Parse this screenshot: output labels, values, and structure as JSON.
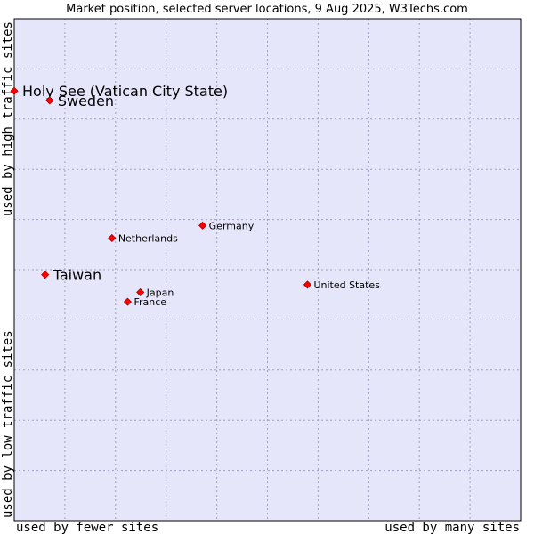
{
  "chart_data": {
    "type": "scatter",
    "title": "Market position, selected server locations, 9 Aug 2025, W3Techs.com",
    "xlabel_left": "used by fewer sites",
    "xlabel_right": "used by many sites",
    "ylabel_bottom": "used by low traffic sites",
    "ylabel_top": "used by high traffic sites",
    "grid": true,
    "colors": {
      "plot_bg": "#e6e6fa",
      "grid": "#a0a0c0",
      "marker": "#ff0000",
      "marker_edge": "#aa0000"
    },
    "points": [
      {
        "label": "Holy See (Vatican City State)",
        "x": 0.0,
        "y": 0.856,
        "size": "large"
      },
      {
        "label": "Sweden",
        "x": 0.07,
        "y": 0.837,
        "size": "large"
      },
      {
        "label": "Germany",
        "x": 0.372,
        "y": 0.588,
        "size": "small"
      },
      {
        "label": "Netherlands",
        "x": 0.193,
        "y": 0.563,
        "size": "small"
      },
      {
        "label": "Taiwan",
        "x": 0.061,
        "y": 0.49,
        "size": "large"
      },
      {
        "label": "United States",
        "x": 0.579,
        "y": 0.47,
        "size": "small"
      },
      {
        "label": "Japan",
        "x": 0.249,
        "y": 0.455,
        "size": "small"
      },
      {
        "label": "France",
        "x": 0.224,
        "y": 0.436,
        "size": "small"
      }
    ]
  }
}
